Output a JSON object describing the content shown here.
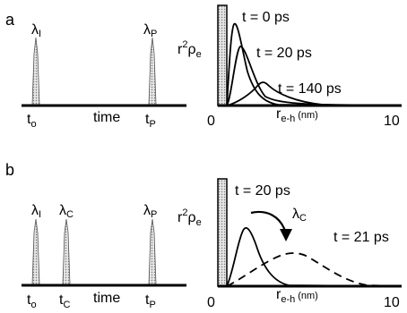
{
  "panels": [
    {
      "letter": "a",
      "timeline": {
        "pulses": [
          {
            "symbol": "λ",
            "sub": "I",
            "under_symbol": "t",
            "under_sub": "o"
          },
          {
            "symbol": "λ",
            "sub": "P",
            "under_symbol": "t",
            "under_sub": "P"
          }
        ],
        "axis_label": "time"
      },
      "plot": {
        "ylabel_main": "r",
        "ylabel_sup": "2",
        "ylabel_rho": "ρ",
        "ylabel_sub": "e",
        "x_min": "0",
        "x_max": "10",
        "xlabel_main": "r",
        "xlabel_sub": "e-h",
        "xlabel_unit": "(nm)",
        "curve_labels": [
          "t = 0 ps",
          "t = 20 ps",
          "t = 140 ps"
        ]
      }
    },
    {
      "letter": "b",
      "timeline": {
        "pulses": [
          {
            "symbol": "λ",
            "sub": "I",
            "under_symbol": "t",
            "under_sub": "o"
          },
          {
            "symbol": "λ",
            "sub": "C",
            "under_symbol": "t",
            "under_sub": "C"
          },
          {
            "symbol": "λ",
            "sub": "P",
            "under_symbol": "t",
            "under_sub": "P"
          }
        ],
        "axis_label": "time"
      },
      "plot": {
        "ylabel_main": "r",
        "ylabel_sup": "2",
        "ylabel_rho": "ρ",
        "ylabel_sub": "e",
        "x_min": "0",
        "x_max": "10",
        "xlabel_main": "r",
        "xlabel_sub": "e-h",
        "xlabel_unit": "(nm)",
        "curve_labels": [
          "t = 20 ps",
          "t = 21 ps"
        ],
        "arrow_label_symbol": "λ",
        "arrow_label_sub": "C"
      }
    }
  ]
}
